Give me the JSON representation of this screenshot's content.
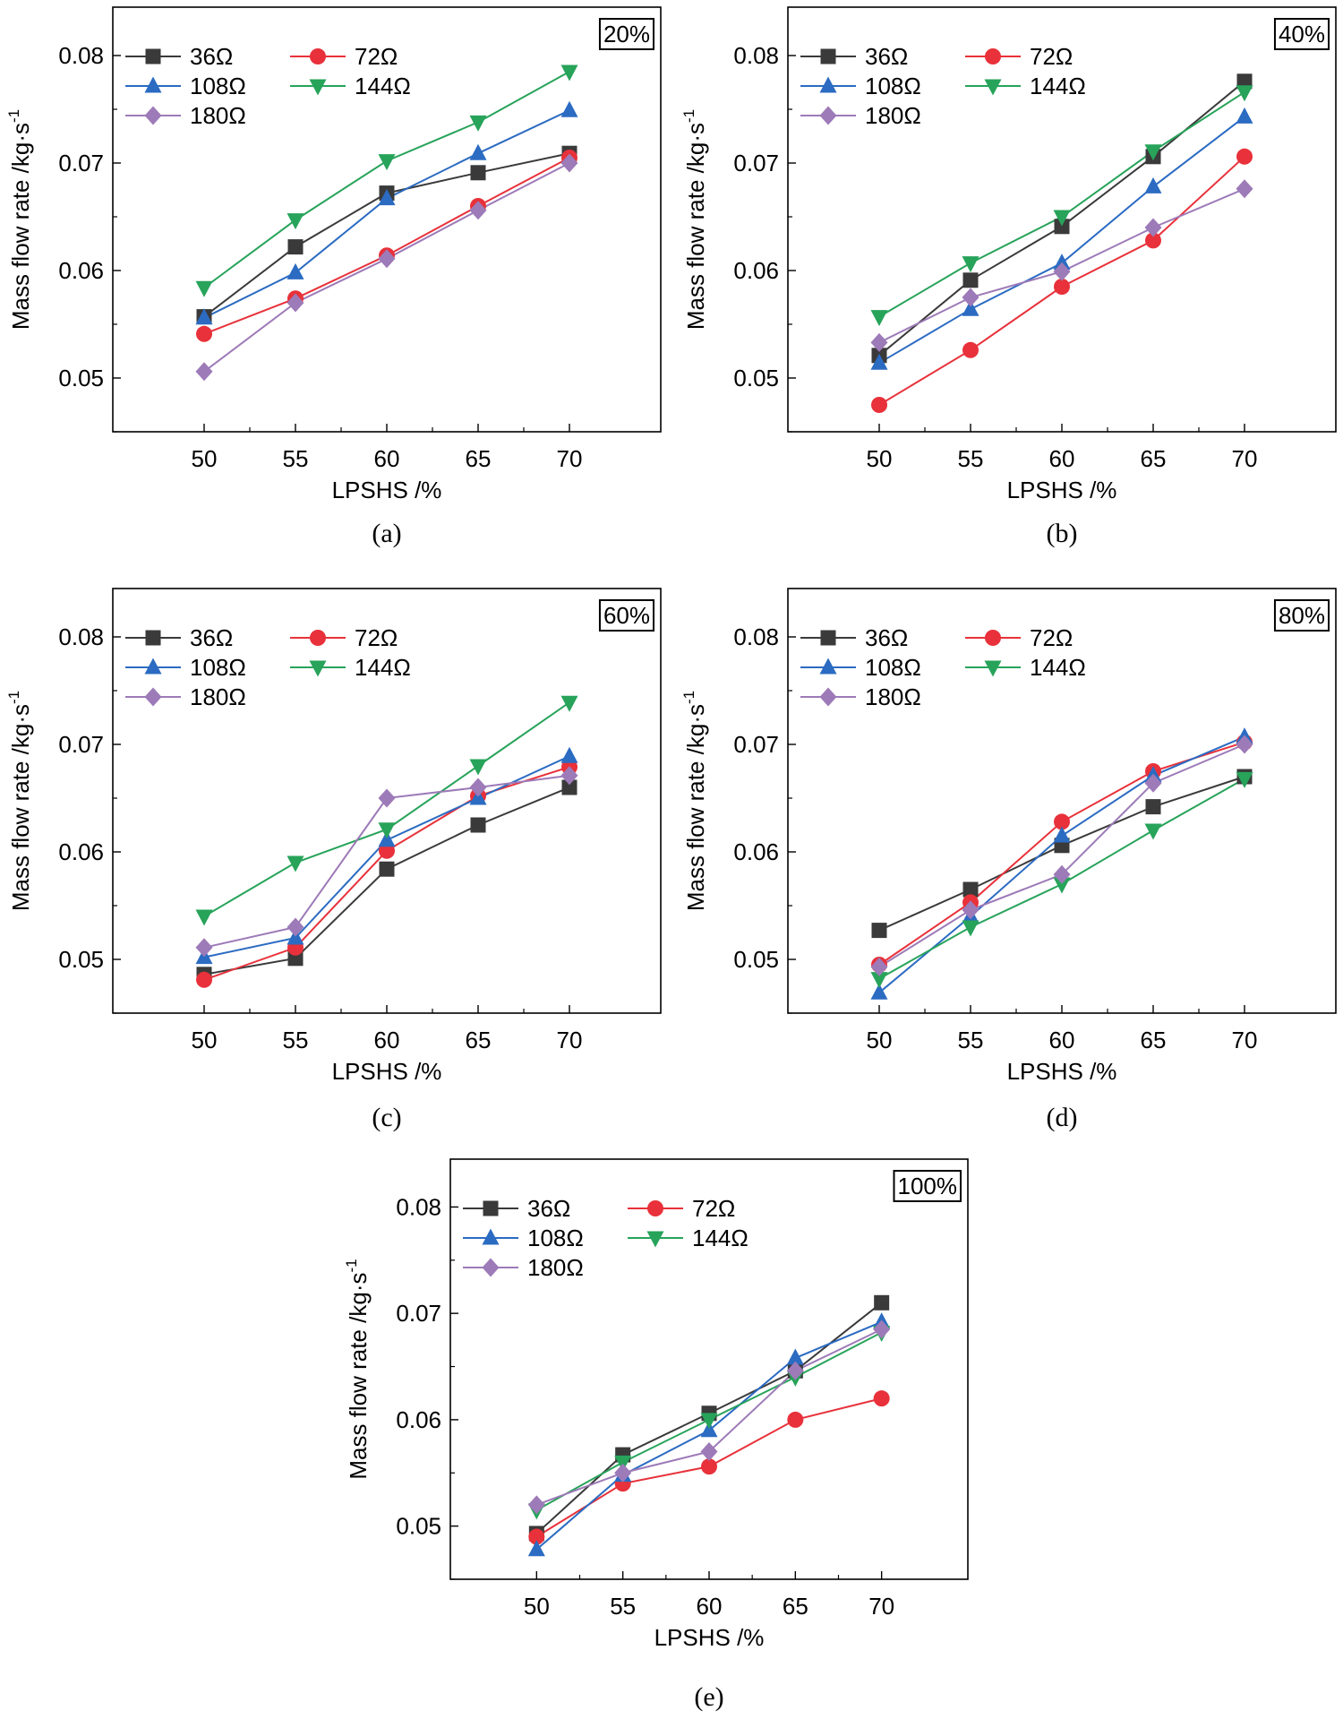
{
  "figure": {
    "series_style": [
      {
        "name": "36Ω",
        "color": "#3a3a3a",
        "marker": "square"
      },
      {
        "name": "72Ω",
        "color": "#e8313a",
        "marker": "circle"
      },
      {
        "name": "108Ω",
        "color": "#2b6bc2",
        "marker": "triangle-up"
      },
      {
        "name": "144Ω",
        "color": "#27a35a",
        "marker": "triangle-down"
      },
      {
        "name": "180Ω",
        "color": "#9d7ab8",
        "marker": "diamond"
      }
    ]
  },
  "chart_data": [
    {
      "type": "line",
      "caption": "(a)",
      "annotation": "20%",
      "xlabel": "LPSHS /%",
      "ylabel": "Mass flow rate /kg·s",
      "ylabel_superscript": "-1",
      "x": [
        50,
        55,
        60,
        65,
        70
      ],
      "xticks": [
        "50",
        "55",
        "60",
        "65",
        "70"
      ],
      "yticks": [
        "0.05",
        "0.06",
        "0.07",
        "0.08"
      ],
      "xlim": [
        45,
        75
      ],
      "ylim": [
        0.045,
        0.0845
      ],
      "legend": "top-left",
      "series": [
        {
          "name": "36Ω",
          "values": [
            0.0557,
            0.0622,
            0.0672,
            0.0691,
            0.0709
          ]
        },
        {
          "name": "72Ω",
          "values": [
            0.0541,
            0.0574,
            0.0614,
            0.066,
            0.0705
          ]
        },
        {
          "name": "108Ω",
          "values": [
            0.0556,
            0.0598,
            0.0667,
            0.0709,
            0.0749
          ]
        },
        {
          "name": "144Ω",
          "values": [
            0.0584,
            0.0647,
            0.0702,
            0.0738,
            0.0785
          ]
        },
        {
          "name": "180Ω",
          "values": [
            0.0506,
            0.057,
            0.0611,
            0.0656,
            0.07
          ]
        }
      ]
    },
    {
      "type": "line",
      "caption": "(b)",
      "annotation": "40%",
      "xlabel": "LPSHS /%",
      "ylabel": "Mass flow rate /kg·s",
      "ylabel_superscript": "-1",
      "x": [
        50,
        55,
        60,
        65,
        70
      ],
      "xticks": [
        "50",
        "55",
        "60",
        "65",
        "70"
      ],
      "yticks": [
        "0.05",
        "0.06",
        "0.07",
        "0.08"
      ],
      "xlim": [
        45,
        75
      ],
      "ylim": [
        0.045,
        0.0845
      ],
      "legend": "top-left",
      "series": [
        {
          "name": "36Ω",
          "values": [
            0.0521,
            0.0591,
            0.0641,
            0.0706,
            0.0776
          ]
        },
        {
          "name": "72Ω",
          "values": [
            0.0475,
            0.0526,
            0.0585,
            0.0628,
            0.0706
          ]
        },
        {
          "name": "108Ω",
          "values": [
            0.0514,
            0.0564,
            0.0607,
            0.0678,
            0.0743
          ]
        },
        {
          "name": "144Ω",
          "values": [
            0.0557,
            0.0607,
            0.065,
            0.0711,
            0.0766
          ]
        },
        {
          "name": "180Ω",
          "values": [
            0.0533,
            0.0575,
            0.0599,
            0.064,
            0.0676
          ]
        }
      ]
    },
    {
      "type": "line",
      "caption": "(c)",
      "annotation": "60%",
      "xlabel": "LPSHS /%",
      "ylabel": "Mass flow rate /kg·s",
      "ylabel_superscript": "-1",
      "x": [
        50,
        55,
        60,
        65,
        70
      ],
      "xticks": [
        "50",
        "55",
        "60",
        "65",
        "70"
      ],
      "yticks": [
        "0.05",
        "0.06",
        "0.07",
        "0.08"
      ],
      "xlim": [
        45,
        75
      ],
      "ylim": [
        0.045,
        0.0845
      ],
      "legend": "top-left",
      "series": [
        {
          "name": "36Ω",
          "values": [
            0.0486,
            0.0501,
            0.0584,
            0.0625,
            0.066
          ]
        },
        {
          "name": "72Ω",
          "values": [
            0.0481,
            0.0511,
            0.0601,
            0.0652,
            0.0679
          ]
        },
        {
          "name": "108Ω",
          "values": [
            0.0502,
            0.052,
            0.0611,
            0.065,
            0.0689
          ]
        },
        {
          "name": "144Ω",
          "values": [
            0.054,
            0.059,
            0.0621,
            0.068,
            0.0739
          ]
        },
        {
          "name": "180Ω",
          "values": [
            0.0511,
            0.053,
            0.065,
            0.066,
            0.0671
          ]
        }
      ]
    },
    {
      "type": "line",
      "caption": "(d)",
      "annotation": "80%",
      "xlabel": "LPSHS /%",
      "ylabel": "Mass flow rate /kg·s",
      "ylabel_superscript": "-1",
      "x": [
        50,
        55,
        60,
        65,
        70
      ],
      "xticks": [
        "50",
        "55",
        "60",
        "65",
        "70"
      ],
      "yticks": [
        "0.05",
        "0.06",
        "0.07",
        "0.08"
      ],
      "xlim": [
        45,
        75
      ],
      "ylim": [
        0.045,
        0.0845
      ],
      "legend": "top-left",
      "series": [
        {
          "name": "36Ω",
          "values": [
            0.0527,
            0.0565,
            0.0606,
            0.0642,
            0.067
          ]
        },
        {
          "name": "72Ω",
          "values": [
            0.0495,
            0.0553,
            0.0628,
            0.0675,
            0.0702
          ]
        },
        {
          "name": "108Ω",
          "values": [
            0.0469,
            0.054,
            0.0615,
            0.0671,
            0.0707
          ]
        },
        {
          "name": "144Ω",
          "values": [
            0.0482,
            0.053,
            0.057,
            0.062,
            0.0668
          ]
        },
        {
          "name": "180Ω",
          "values": [
            0.0493,
            0.0546,
            0.0579,
            0.0664,
            0.07
          ]
        }
      ]
    },
    {
      "type": "line",
      "caption": "(e)",
      "annotation": "100%",
      "xlabel": "LPSHS /%",
      "ylabel": "Mass flow rate /kg·s",
      "ylabel_superscript": "-1",
      "x": [
        50,
        55,
        60,
        65,
        70
      ],
      "xticks": [
        "50",
        "55",
        "60",
        "65",
        "70"
      ],
      "yticks": [
        "0.05",
        "0.06",
        "0.07",
        "0.08"
      ],
      "xlim": [
        45,
        75
      ],
      "ylim": [
        0.045,
        0.0845
      ],
      "legend": "top-left",
      "series": [
        {
          "name": "36Ω",
          "values": [
            0.0493,
            0.0567,
            0.0606,
            0.0646,
            0.071
          ]
        },
        {
          "name": "72Ω",
          "values": [
            0.049,
            0.054,
            0.0556,
            0.06,
            0.062
          ]
        },
        {
          "name": "108Ω",
          "values": [
            0.0478,
            0.0548,
            0.059,
            0.0658,
            0.0692
          ]
        },
        {
          "name": "144Ω",
          "values": [
            0.0515,
            0.056,
            0.06,
            0.064,
            0.0682
          ]
        },
        {
          "name": "180Ω",
          "values": [
            0.052,
            0.055,
            0.057,
            0.0646,
            0.0685
          ]
        }
      ]
    }
  ]
}
